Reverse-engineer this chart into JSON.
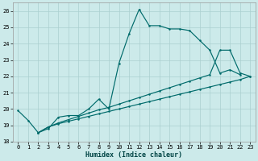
{
  "xlabel": "Humidex (Indice chaleur)",
  "background_color": "#cceaea",
  "grid_color": "#aacfcf",
  "line_color": "#006b6b",
  "xlim": [
    -0.5,
    23.5
  ],
  "ylim": [
    18,
    26.5
  ],
  "yticks": [
    18,
    19,
    20,
    21,
    22,
    23,
    24,
    25,
    26
  ],
  "xticks": [
    0,
    1,
    2,
    3,
    4,
    5,
    6,
    7,
    8,
    9,
    10,
    11,
    12,
    13,
    14,
    15,
    16,
    17,
    18,
    19,
    20,
    21,
    22,
    23
  ],
  "line1_x": [
    0,
    1,
    2,
    3,
    4,
    5,
    6,
    7,
    8,
    9,
    10,
    11,
    12,
    13,
    14,
    15,
    16,
    17,
    18,
    19,
    20,
    21,
    22
  ],
  "line1_y": [
    19.9,
    19.3,
    18.55,
    18.8,
    19.5,
    19.6,
    19.6,
    20.0,
    20.6,
    20.0,
    22.8,
    24.6,
    26.1,
    25.1,
    25.1,
    24.9,
    24.9,
    24.8,
    24.2,
    23.6,
    22.2,
    22.4,
    22.1
  ],
  "line2_x": [
    2,
    3,
    4,
    5,
    6,
    7,
    8,
    9,
    10,
    11,
    12,
    13,
    14,
    15,
    16,
    17,
    18,
    19,
    20,
    21,
    22,
    23
  ],
  "line2_y": [
    18.55,
    18.9,
    19.15,
    19.35,
    19.55,
    19.75,
    19.95,
    20.1,
    20.3,
    20.5,
    20.7,
    20.9,
    21.1,
    21.3,
    21.5,
    21.7,
    21.9,
    22.1,
    23.6,
    23.6,
    22.2,
    22.0
  ],
  "line3_x": [
    2,
    3,
    4,
    5,
    6,
    7,
    8,
    9,
    10,
    11,
    12,
    13,
    14,
    15,
    16,
    17,
    18,
    19,
    20,
    21,
    22,
    23
  ],
  "line3_y": [
    18.55,
    18.9,
    19.1,
    19.25,
    19.4,
    19.55,
    19.7,
    19.85,
    20.0,
    20.15,
    20.3,
    20.45,
    20.6,
    20.75,
    20.9,
    21.05,
    21.2,
    21.35,
    21.5,
    21.65,
    21.8,
    22.0
  ]
}
